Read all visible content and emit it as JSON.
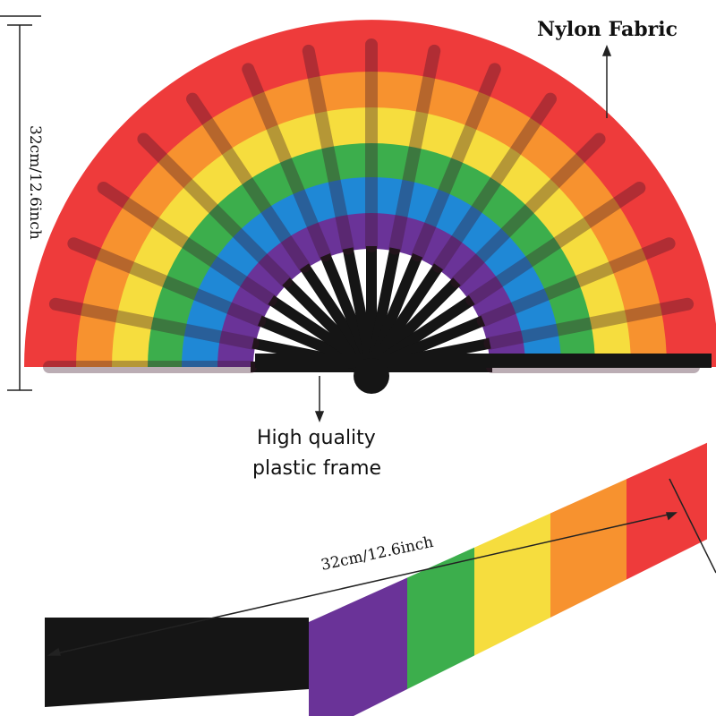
{
  "labels": {
    "fabric": "Nylon Fabric",
    "height": "32cm/12.6inch",
    "frame_line1": "High quality",
    "frame_line2": "plastic  frame",
    "length": "32cm/12.6inch"
  },
  "colors": {
    "red": "#ee3b3b",
    "orange": "#f7922f",
    "yellow": "#f6dd3e",
    "green": "#3cae4c",
    "blue": "#1f88d6",
    "purple": "#6a3398",
    "frame": "#151515"
  }
}
